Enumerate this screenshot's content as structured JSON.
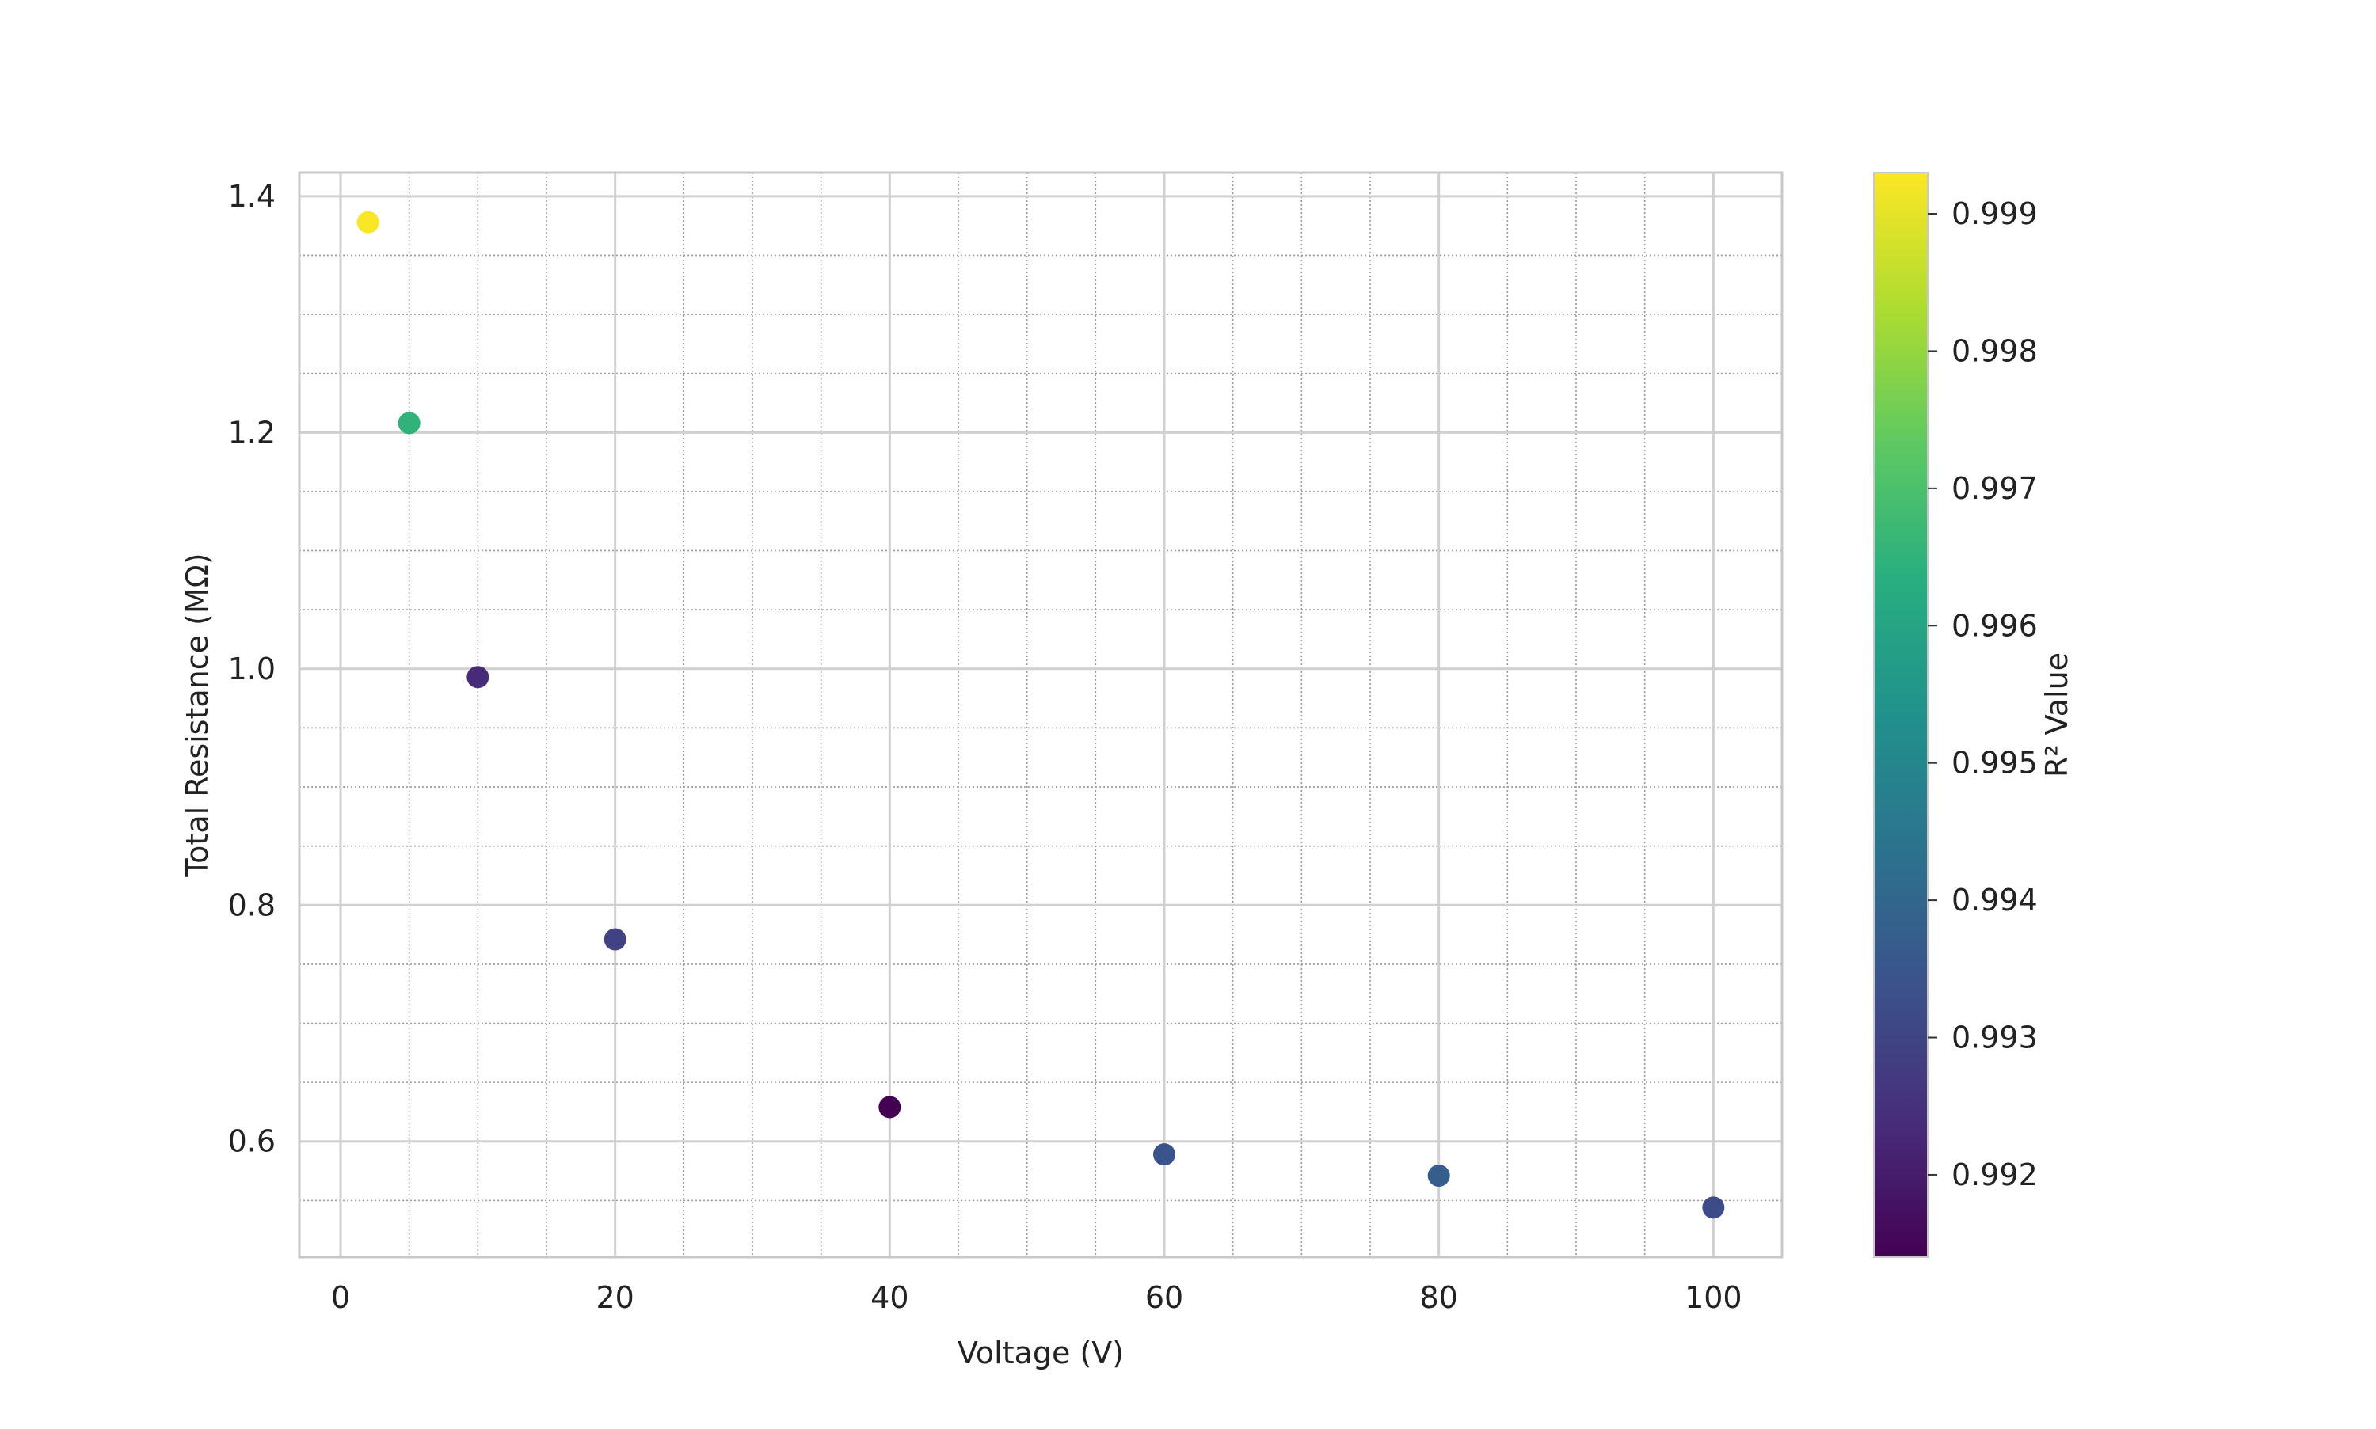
{
  "chart_data": {
    "type": "scatter",
    "title": "",
    "xlabel": "Voltage (V)",
    "ylabel": "Total Resistance (MΩ)",
    "xlim": [
      -3,
      105
    ],
    "ylim": [
      0.502,
      1.42
    ],
    "x_ticks": [
      0,
      20,
      40,
      60,
      80,
      100
    ],
    "x_tick_labels": [
      "0",
      "20",
      "40",
      "60",
      "80",
      "100"
    ],
    "y_ticks": [
      0.6,
      0.8,
      1.0,
      1.2,
      1.4
    ],
    "y_tick_labels": [
      "0.6",
      "0.8",
      "1.0",
      "1.2",
      "1.4"
    ],
    "x_minor_step": 5,
    "y_minor_step": 0.05,
    "grid": true,
    "points": [
      {
        "x": 2,
        "y": 1.378,
        "r2": 0.99925
      },
      {
        "x": 5,
        "y": 1.208,
        "r2": 0.9965
      },
      {
        "x": 10,
        "y": 0.993,
        "r2": 0.99235
      },
      {
        "x": 20,
        "y": 0.771,
        "r2": 0.99295
      },
      {
        "x": 40,
        "y": 0.629,
        "r2": 0.9914
      },
      {
        "x": 60,
        "y": 0.589,
        "r2": 0.9934
      },
      {
        "x": 80,
        "y": 0.571,
        "r2": 0.99375
      },
      {
        "x": 100,
        "y": 0.544,
        "r2": 0.9932
      }
    ],
    "colorbar": {
      "label": "R² Value",
      "colormap": "viridis",
      "range": [
        0.9914,
        0.9993
      ],
      "ticks": [
        0.992,
        0.993,
        0.994,
        0.995,
        0.996,
        0.997,
        0.998,
        0.999
      ],
      "tick_labels": [
        "0.992",
        "0.993",
        "0.994",
        "0.995",
        "0.996",
        "0.997",
        "0.998",
        "0.999"
      ]
    },
    "colors": {
      "axis": "#c8c8c8",
      "major_grid": "#d0d0d0",
      "minor_grid": "#9a9a9a",
      "text": "#222222"
    }
  }
}
